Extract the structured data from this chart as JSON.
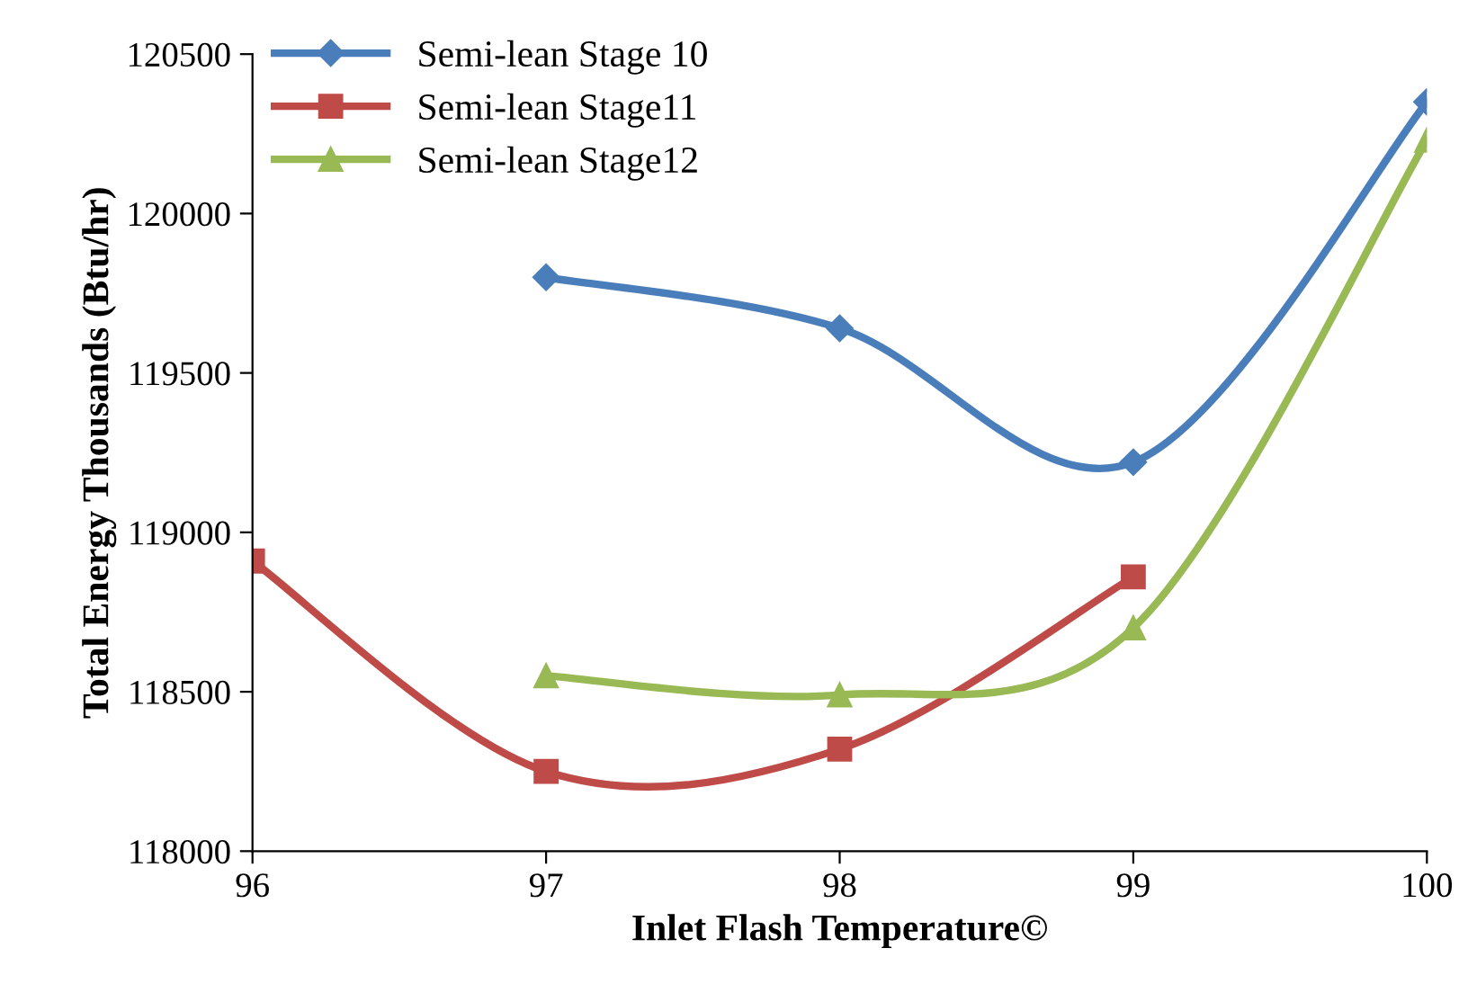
{
  "chart_data": {
    "type": "line",
    "xlabel": "Inlet Flash Temperature©",
    "ylabel": "Total Energy Thousands (Btu/hr)",
    "xlim": [
      96,
      100
    ],
    "xticks": [
      96,
      97,
      98,
      99,
      100
    ],
    "ylim": [
      118000,
      120500
    ],
    "yticks": [
      118000,
      118500,
      119000,
      119500,
      120000,
      120500
    ],
    "grid": false,
    "legend": "top left",
    "line_style": "solid",
    "series": [
      {
        "name": "Semi-lean Stage 10",
        "color": "#4a7ebb",
        "marker": "diamond",
        "x": [
          97,
          98,
          99,
          100
        ],
        "values": [
          119800,
          119640,
          119220,
          120350
        ]
      },
      {
        "name": "Semi-lean Stage11",
        "color": "#be4b48",
        "marker": "square",
        "x": [
          96,
          97,
          98,
          99
        ],
        "values": [
          118910,
          118250,
          118320,
          118860
        ]
      },
      {
        "name": "Semi-lean Stage12",
        "color": "#98b954",
        "marker": "triangle",
        "x": [
          97,
          98,
          99,
          100
        ],
        "values": [
          118550,
          118490,
          118700,
          120230
        ]
      }
    ]
  }
}
